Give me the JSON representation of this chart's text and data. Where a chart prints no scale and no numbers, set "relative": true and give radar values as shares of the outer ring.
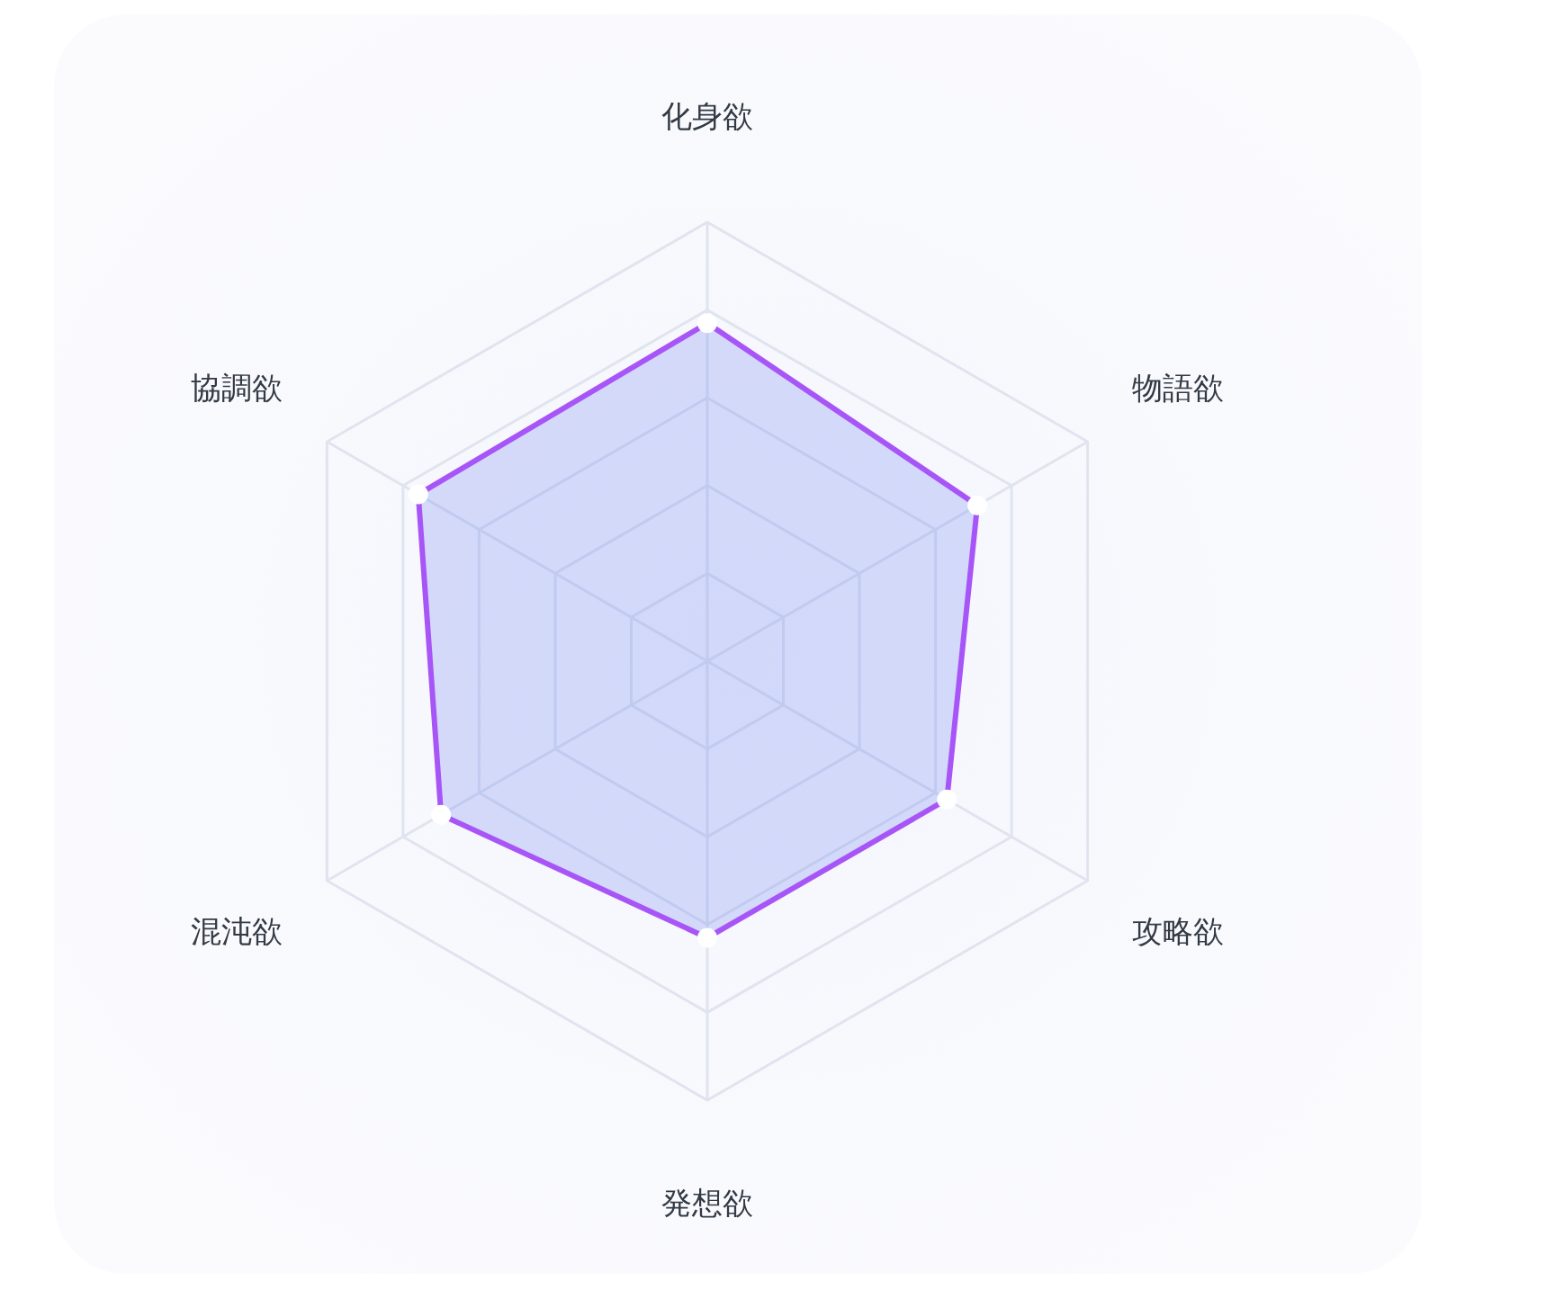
{
  "chart_data": {
    "type": "radar",
    "categories": [
      "化身欲",
      "物語欲",
      "攻略欲",
      "発想欲",
      "混沌欲",
      "協調欲"
    ],
    "relative": true,
    "grid": true,
    "marker": "circle",
    "series": [
      {
        "color": "#a855f7",
        "values": [
          0.77,
          0.71,
          0.63,
          0.63,
          0.7,
          0.76
        ]
      }
    ]
  }
}
